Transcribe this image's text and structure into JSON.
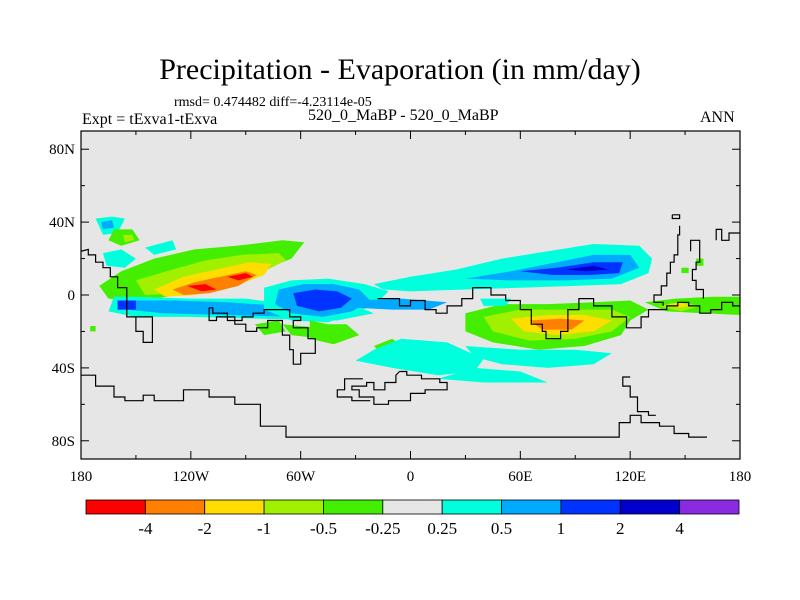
{
  "title": "Precipitation - Evaporation (in mm/day)",
  "stats_text": "rmsd= 0.474482 diff=-4.23114e-05",
  "left_label": "Expt = tExva1-tExva",
  "center_label": "520_0_MaBP - 520_0_MaBP",
  "right_label": "ANN",
  "chart_data": {
    "type": "contour-map",
    "variable": "Precipitation - Evaporation",
    "units": "mm/day",
    "experiment": "tExva1-tExva",
    "case": "520_0_MaBP - 520_0_MaBP",
    "season": "ANN",
    "rmsd": 0.474482,
    "diff": -4.23114e-05,
    "lon_range": [
      -180,
      180
    ],
    "lat_range": [
      -90,
      90
    ],
    "x_ticks": [
      {
        "value": -180,
        "label": "180"
      },
      {
        "value": -120,
        "label": "120W"
      },
      {
        "value": -60,
        "label": "60W"
      },
      {
        "value": 0,
        "label": "0"
      },
      {
        "value": 60,
        "label": "60E"
      },
      {
        "value": 120,
        "label": "120E"
      },
      {
        "value": 180,
        "label": "180"
      }
    ],
    "y_ticks": [
      {
        "value": 80,
        "label": "80N"
      },
      {
        "value": 40,
        "label": "40N"
      },
      {
        "value": 0,
        "label": "0"
      },
      {
        "value": -40,
        "label": "40S"
      },
      {
        "value": -80,
        "label": "80S"
      }
    ],
    "background_color": "#e6e6e6",
    "colorbar": {
      "levels": [
        "-4",
        "-2",
        "-1",
        "-0.5",
        "-0.25",
        "0.25",
        "0.5",
        "1",
        "2",
        "4"
      ],
      "colors": [
        "#ff0000",
        "#ff8000",
        "#ffdd00",
        "#a0f000",
        "#44ee00",
        "#e6e6e6",
        "#00ffdd",
        "#00aaff",
        "#0033ff",
        "#0000cc",
        "#8a2be2"
      ]
    },
    "features": [
      {
        "name": "north-pacific-dry-band",
        "sign": "negative",
        "levels": [
          -0.5,
          -1,
          -2,
          -4
        ],
        "lon": [
          -155,
          -65
        ],
        "lat": [
          -5,
          25
        ]
      },
      {
        "name": "equatorial-pacific-wet-band",
        "sign": "positive",
        "levels": [
          0.25,
          0.5,
          1
        ],
        "lon": [
          -160,
          -40
        ],
        "lat": [
          -12,
          -2
        ]
      },
      {
        "name": "central-wet-core",
        "sign": "positive",
        "levels": [
          0.5,
          1,
          2
        ],
        "lon": [
          -75,
          -20
        ],
        "lat": [
          -15,
          8
        ]
      },
      {
        "name": "north-indian-wet-band",
        "sign": "positive",
        "levels": [
          0.25,
          0.5,
          1,
          2
        ],
        "lon": [
          -20,
          135
        ],
        "lat": [
          5,
          28
        ]
      },
      {
        "name": "south-indian-dry-band",
        "sign": "negative",
        "levels": [
          -0.25,
          -0.5,
          -1,
          -2
        ],
        "lon": [
          30,
          130
        ],
        "lat": [
          -30,
          -5
        ]
      },
      {
        "name": "southern-wet-band",
        "sign": "positive",
        "levels": [
          0.25,
          0.5
        ],
        "lon": [
          -15,
          125
        ],
        "lat": [
          -45,
          -30
        ]
      },
      {
        "name": "eastern-dry-tongue",
        "sign": "negative",
        "levels": [
          -0.25,
          -0.5
        ],
        "lon": [
          130,
          180
        ],
        "lat": [
          -10,
          5
        ]
      }
    ]
  }
}
